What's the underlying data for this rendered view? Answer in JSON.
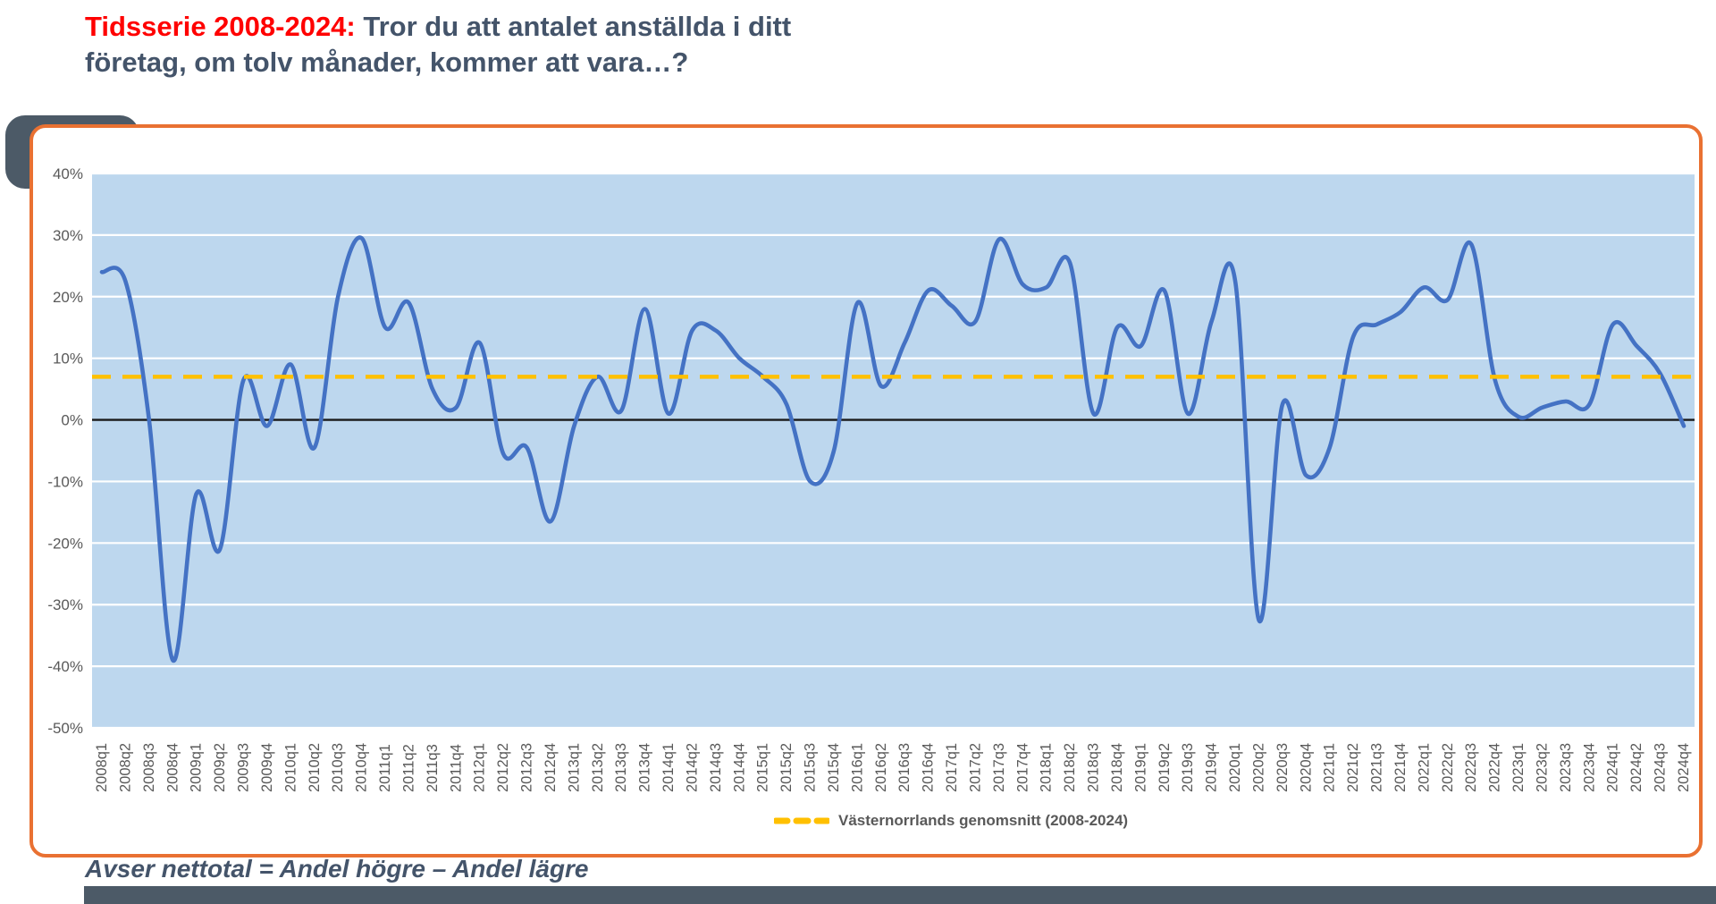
{
  "title": {
    "line1_red": "Tidsserie 2008-2024:",
    "line1_rest": " Tror du att antalet anställda i ditt",
    "line2": "företag, om tolv månader, kommer att vara…?"
  },
  "footer": "Avser nettotal = Andel högre – Andel lägre",
  "legend": {
    "label": "Västernorrlands genomsnitt (2008-2024)"
  },
  "colors": {
    "line": "#4472C4",
    "average_line": "#FFC000",
    "plot_bg": "#BDD7EE",
    "gridline": "#FFFFFF",
    "zero_line": "#1a1a1a",
    "border_orange": "#E97132",
    "title_red": "#FF0000",
    "dark_text": "#44546A",
    "axis_text": "#595959",
    "accent_dark": "#4C5A67"
  },
  "chart_data": {
    "type": "line",
    "title": "Tidsserie 2008-2024: Tror du att antalet anställda i ditt företag, om tolv månader, kommer att vara…?",
    "xlabel": "",
    "ylabel": "",
    "ylim": [
      -50,
      40
    ],
    "yticks": [
      40,
      30,
      20,
      10,
      0,
      -10,
      -20,
      -30,
      -40,
      -50
    ],
    "ytick_suffix": "%",
    "grid": true,
    "legend_position": "bottom",
    "categories": [
      "2008q1",
      "2008q2",
      "2008q3",
      "2008q4",
      "2009q1",
      "2009q2",
      "2009q3",
      "2009q4",
      "2010q1",
      "2010q2",
      "2010q3",
      "2010q4",
      "2011q1",
      "2011q2",
      "2011q3",
      "2011q4",
      "2012q1",
      "2012q2",
      "2012q3",
      "2012q4",
      "2013q1",
      "2013q2",
      "2013q3",
      "2013q4",
      "2014q1",
      "2014q2",
      "2014q3",
      "2014q4",
      "2015q1",
      "2015q2",
      "2015q3",
      "2015q4",
      "2016q1",
      "2016q2",
      "2016q3",
      "2016q4",
      "2017q1",
      "2017q2",
      "2017q3",
      "2017q4",
      "2018q1",
      "2018q2",
      "2018q3",
      "2018q4",
      "2019q1",
      "2019q2",
      "2019q3",
      "2019q4",
      "2020q1",
      "2020q2",
      "2020q3",
      "2020q4",
      "2021q1",
      "2021q2",
      "2021q3",
      "2021q4",
      "2022q1",
      "2022q2",
      "2022q3",
      "2022q4",
      "2023q1",
      "2023q2",
      "2023q3",
      "2023q4",
      "2024q1",
      "2024q2",
      "2024q3",
      "2024q4"
    ],
    "series": [
      {
        "name": "Nettotal",
        "values": [
          24,
          22.5,
          0,
          -39,
          -12,
          -21,
          6.5,
          -1,
          9,
          -4.5,
          20,
          29.5,
          15,
          19,
          5,
          2,
          12.5,
          -5.5,
          -4.5,
          -16.5,
          -1,
          7,
          1.5,
          18,
          1,
          14.5,
          14.5,
          10,
          7,
          2.5,
          -10,
          -5,
          19,
          5.5,
          12.5,
          21,
          18.5,
          16,
          29.3,
          22,
          21.5,
          25.5,
          1,
          15,
          12,
          21,
          1,
          16,
          22.5,
          -32.5,
          2.5,
          -9,
          -4.5,
          13.5,
          15.5,
          17.5,
          21.5,
          19.5,
          28.5,
          6.5,
          0.5,
          2,
          3,
          2.5,
          15.5,
          12,
          7.5,
          -1
        ]
      }
    ],
    "average_line": {
      "label": "Västernorrlands genomsnitt (2008-2024)",
      "value": 7
    }
  }
}
